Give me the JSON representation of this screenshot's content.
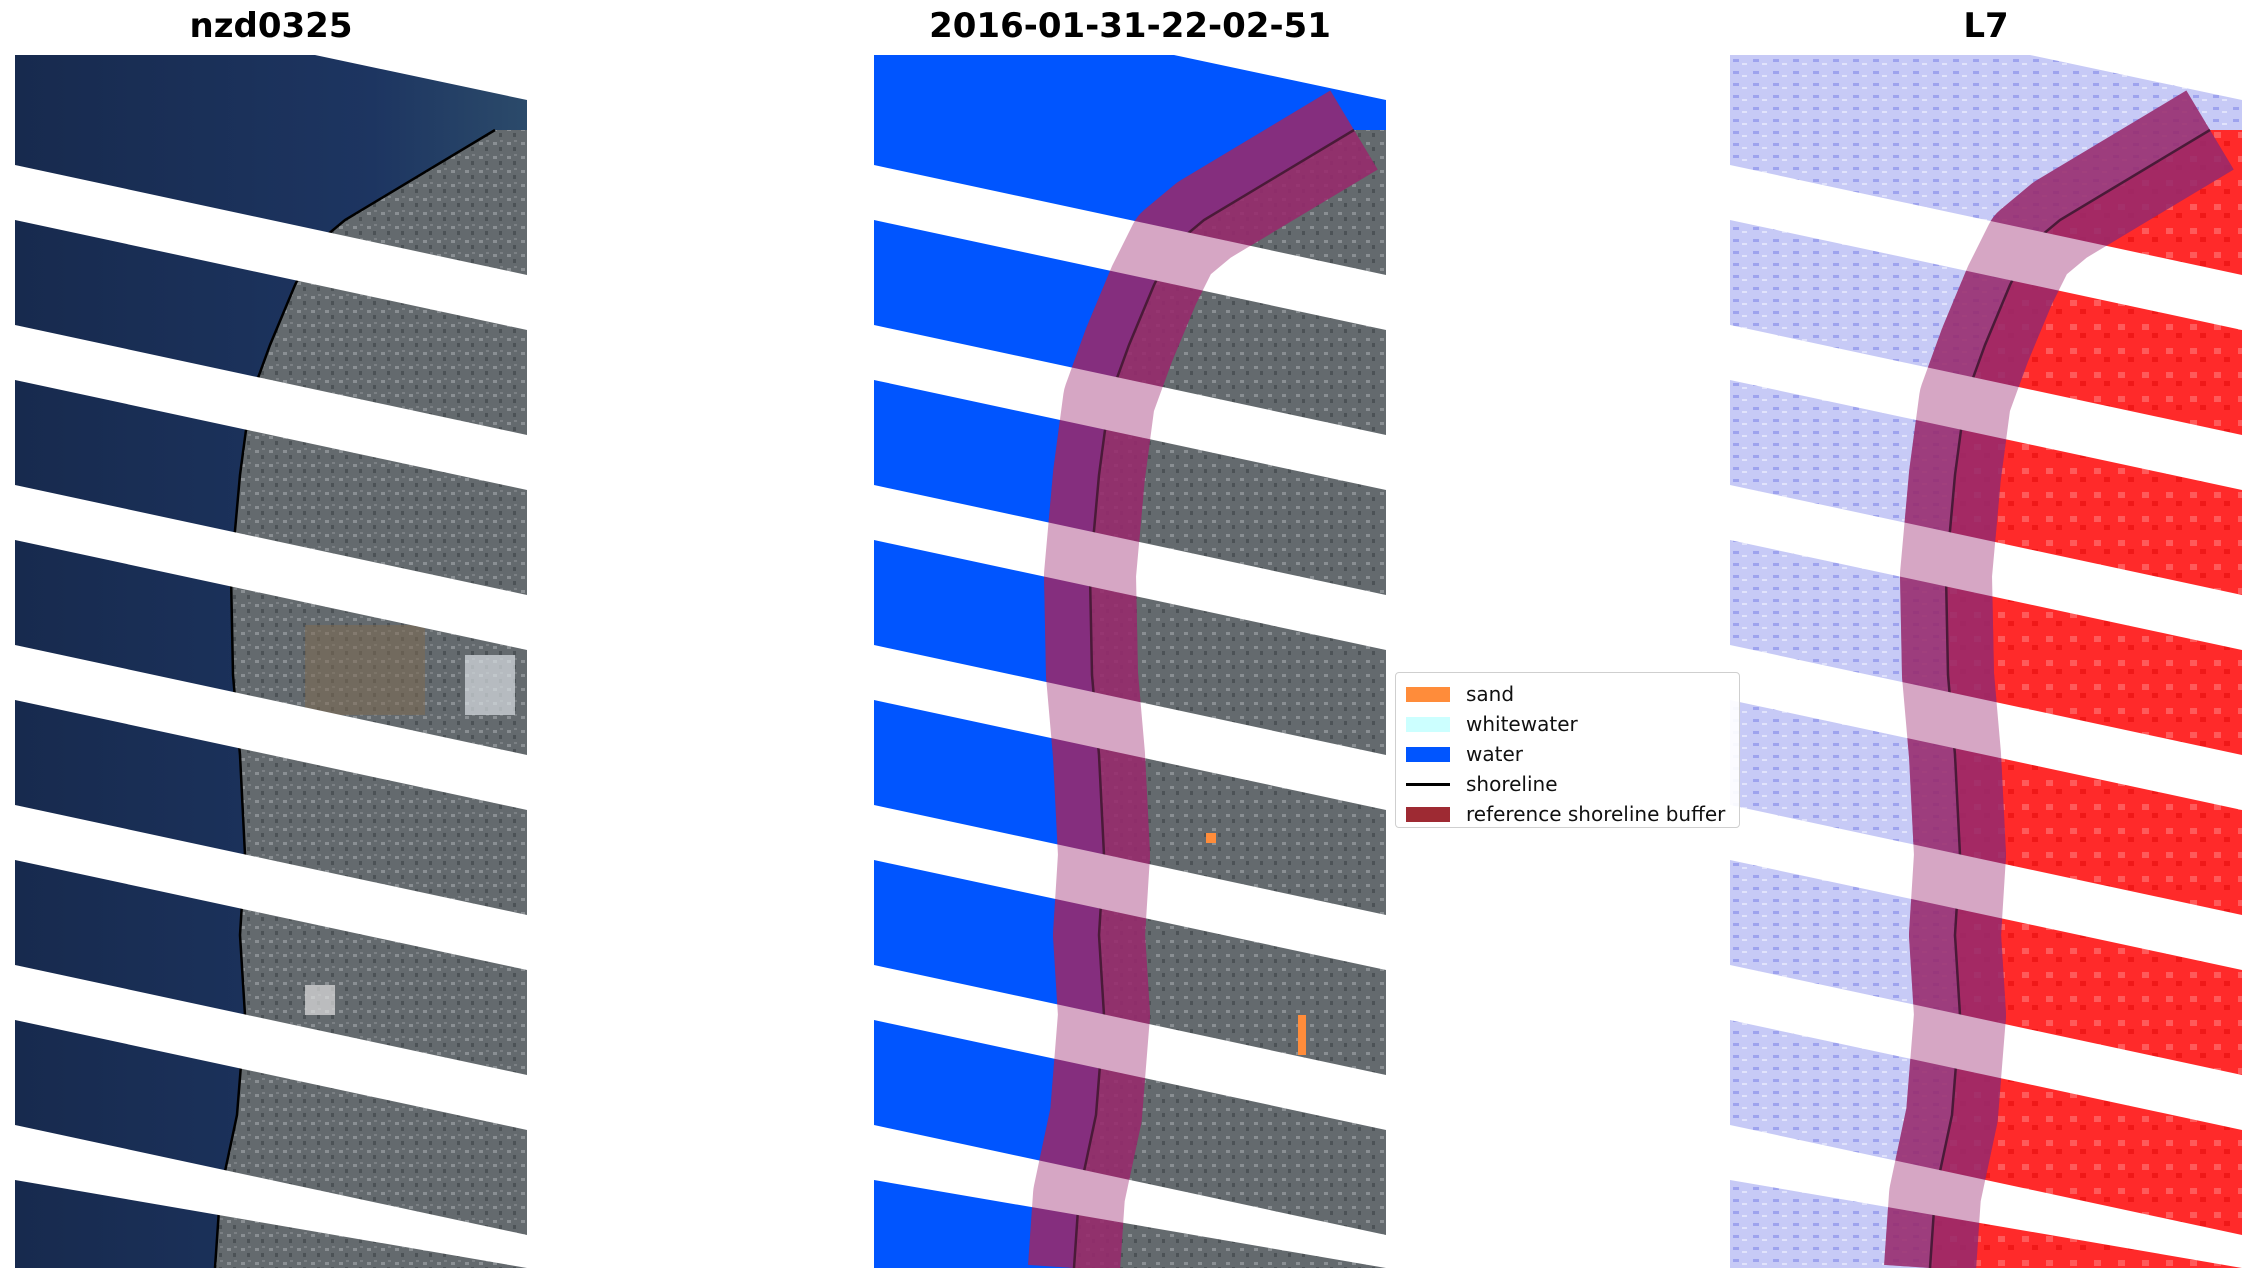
{
  "panels": [
    {
      "title": "nzd0325",
      "kind": "rgb"
    },
    {
      "title": "2016-01-31-22-02-51",
      "kind": "classified"
    },
    {
      "title": "L7",
      "kind": "index"
    }
  ],
  "legend": {
    "items": [
      {
        "label": "sand",
        "color": "#ff8c3a",
        "type": "patch"
      },
      {
        "label": "whitewater",
        "color": "#ccffff",
        "type": "patch"
      },
      {
        "label": "water",
        "color": "#0055ff",
        "type": "patch"
      },
      {
        "label": "shoreline",
        "color": "#000000",
        "type": "line"
      },
      {
        "label": "reference shoreline buffer",
        "color": "#9e2a33",
        "type": "patch"
      }
    ]
  },
  "colors": {
    "sea_rgb": "#1c3158",
    "land_rgb": "#5f6468",
    "water_class": "#0055ff",
    "buffer": "#8b1a5c",
    "index_sea": "#c7caf6",
    "index_land": "#ff2a2a"
  }
}
